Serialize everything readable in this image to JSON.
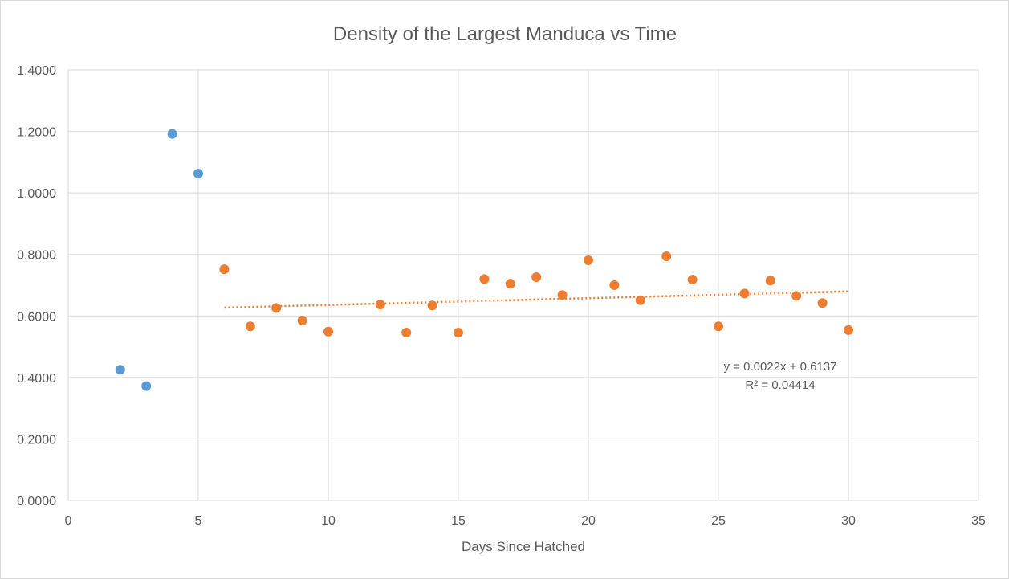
{
  "chart_data": {
    "type": "scatter",
    "title": "Density of the Largest Manduca vs Time",
    "xlabel": "Days Since Hatched",
    "ylabel": "",
    "xlim": [
      0,
      35
    ],
    "ylim": [
      0,
      1.4
    ],
    "x_ticks": [
      0,
      5,
      10,
      15,
      20,
      25,
      30,
      35
    ],
    "y_ticks": [
      0,
      0.2,
      0.4,
      0.6,
      0.8,
      1.0,
      1.2,
      1.4
    ],
    "x_tick_labels": [
      "0",
      "5",
      "10",
      "15",
      "20",
      "25",
      "30",
      "35"
    ],
    "y_tick_labels": [
      "0.0000",
      "0.2000",
      "0.4000",
      "0.6000",
      "0.8000",
      "1.0000",
      "1.2000",
      "1.4000"
    ],
    "grid": true,
    "legend": "none",
    "series": [
      {
        "color": "#5b9bd5",
        "x": [
          2,
          3,
          4,
          5
        ],
        "y": [
          0.425,
          0.372,
          1.192,
          1.063
        ]
      },
      {
        "color": "#ed7d31",
        "x": [
          6,
          7,
          8,
          9,
          10,
          12,
          13,
          14,
          15,
          16,
          17,
          18,
          19,
          20,
          21,
          22,
          23,
          24,
          25,
          26,
          27,
          28,
          29,
          30
        ],
        "y": [
          0.752,
          0.566,
          0.626,
          0.585,
          0.549,
          0.637,
          0.546,
          0.634,
          0.546,
          0.72,
          0.705,
          0.726,
          0.668,
          0.781,
          0.7,
          0.651,
          0.794,
          0.718,
          0.566,
          0.673,
          0.715,
          0.665,
          0.642,
          0.554
        ]
      }
    ],
    "trendline": {
      "color": "#ed7d31",
      "slope": 0.0022,
      "intercept": 0.6137,
      "x_range": [
        6,
        30
      ],
      "equation": "y = 0.0022x + 0.6137",
      "r_squared": "R² = 0.04414"
    }
  }
}
